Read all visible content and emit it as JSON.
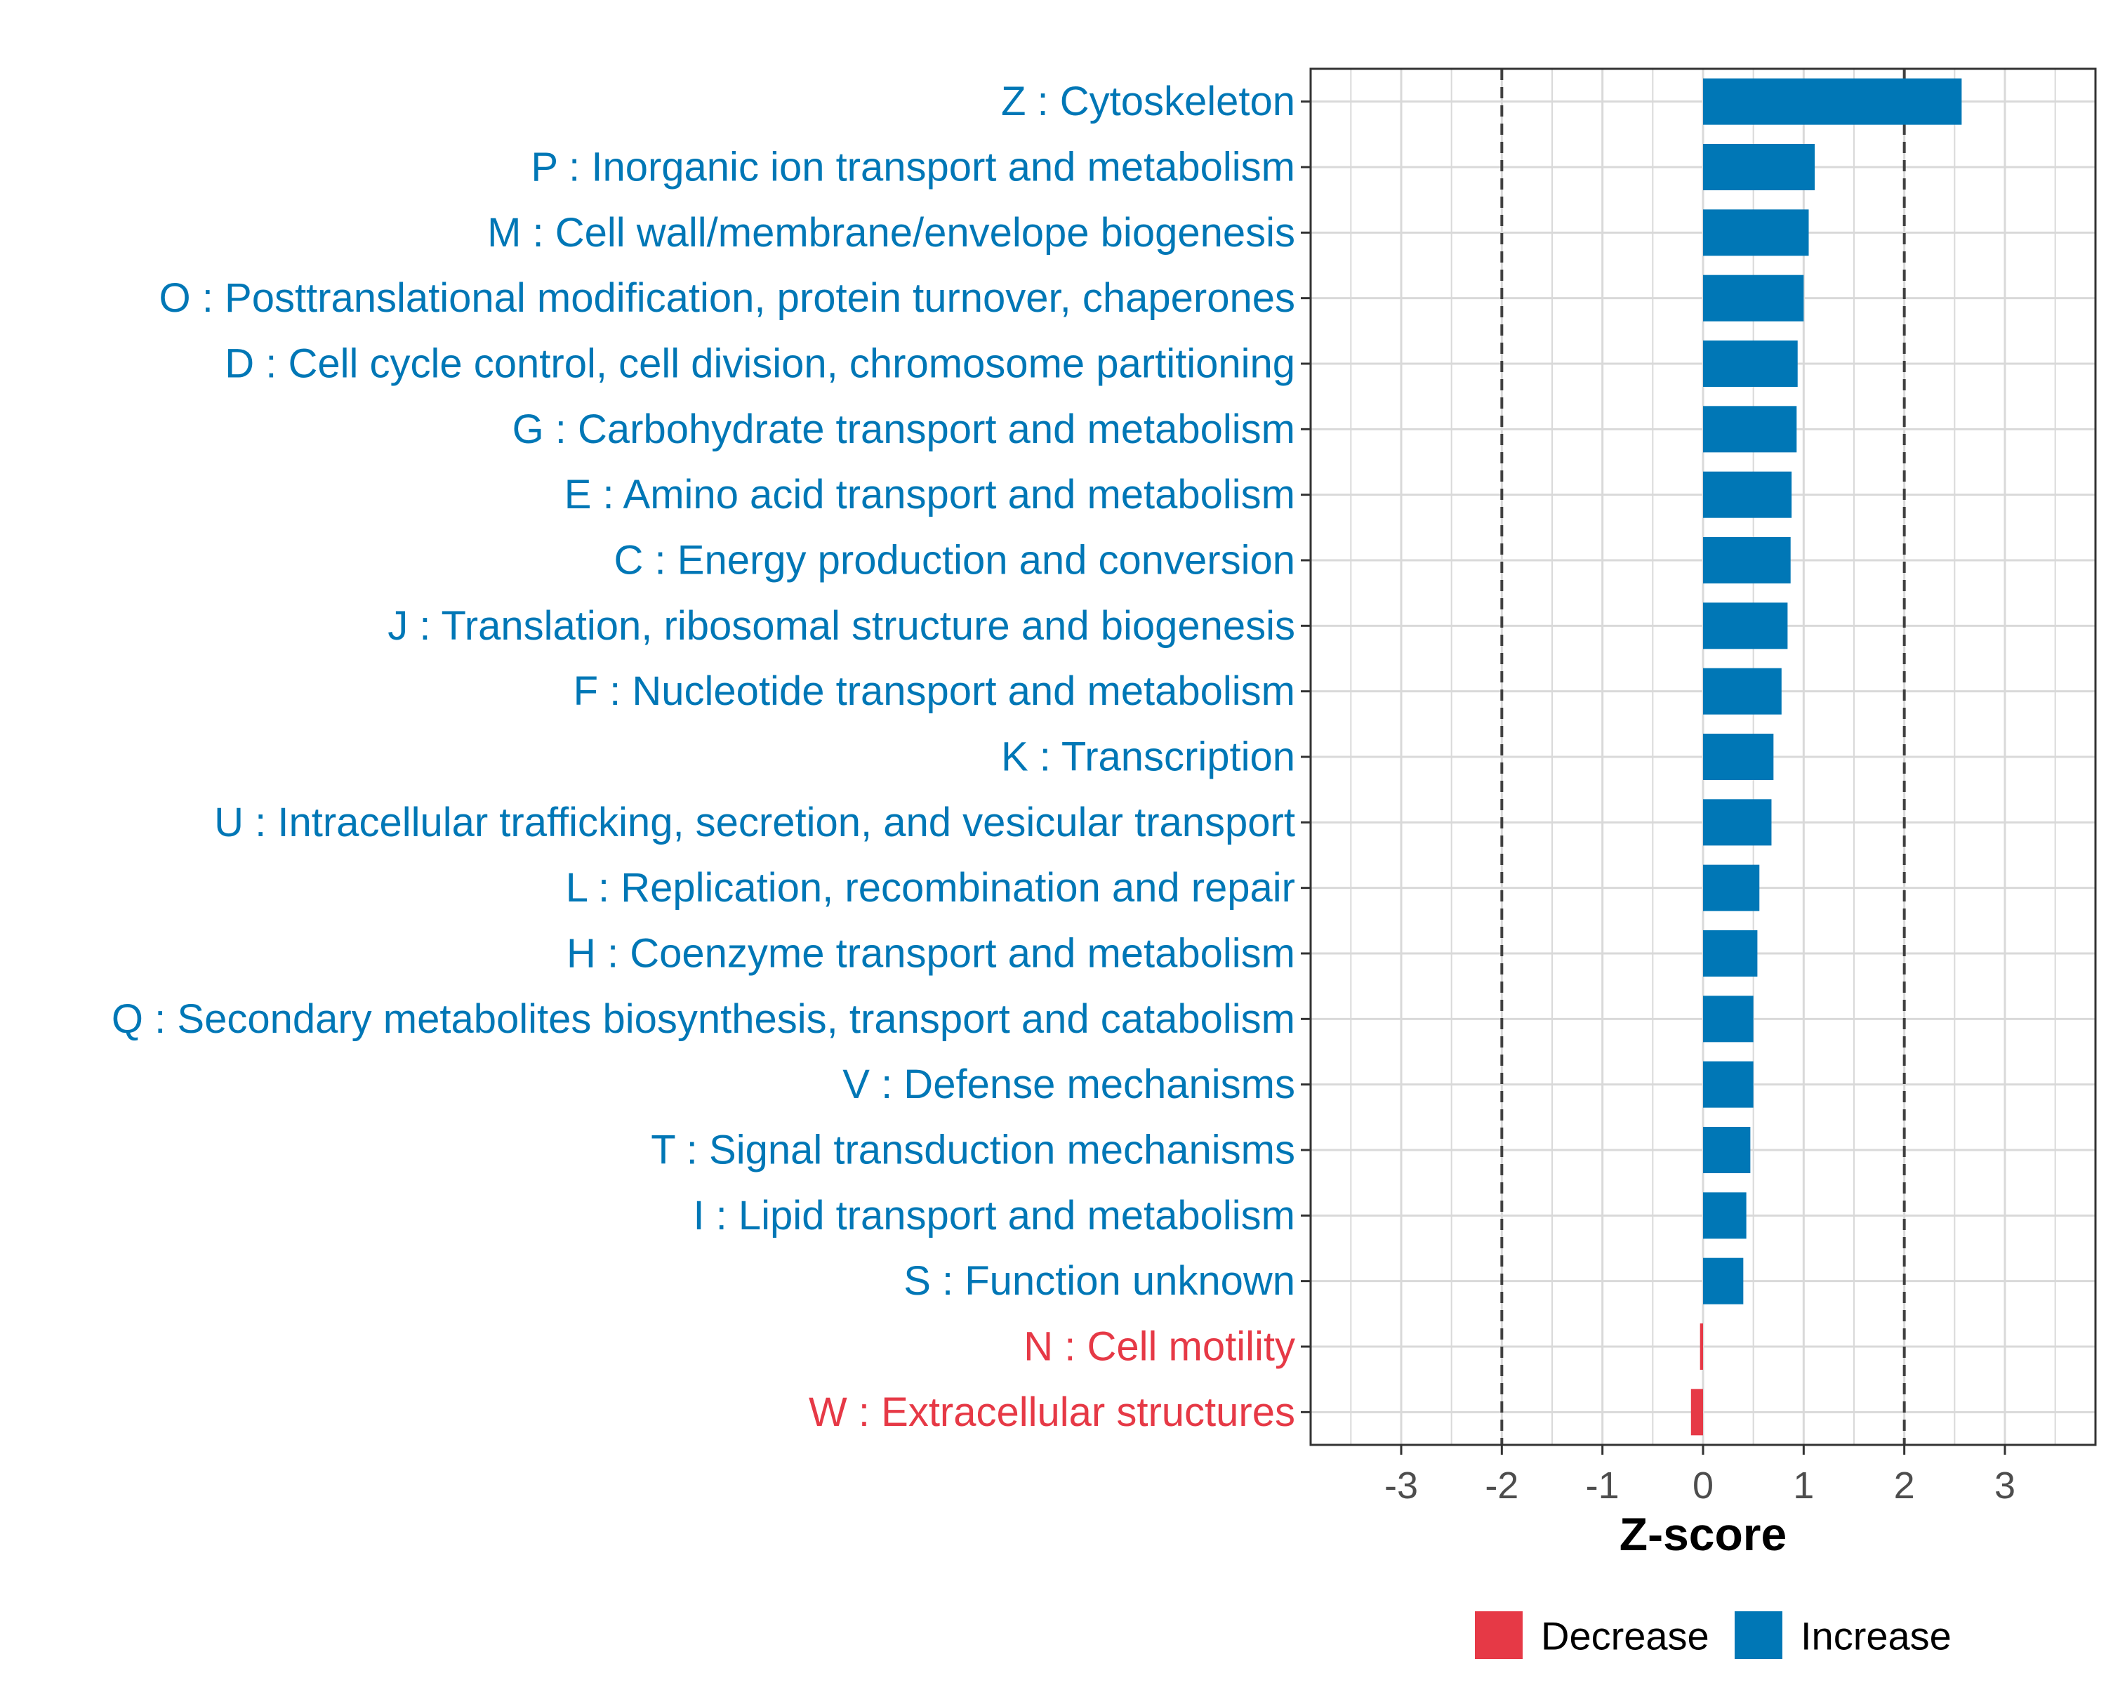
{
  "chart_data": {
    "type": "bar",
    "orientation": "horizontal",
    "title": "",
    "xlabel": "Z-score",
    "ylabel": "",
    "xlim": [
      -3.9,
      3.9
    ],
    "x_ticks": [
      -3,
      -2,
      -1,
      0,
      1,
      2,
      3
    ],
    "x_tick_labels": [
      "-3",
      "-2",
      "-1",
      "0",
      "1",
      "2",
      "3"
    ],
    "reference_lines": [
      -2,
      2
    ],
    "grid": true,
    "legend_position": "bottom",
    "categories": [
      "Z : Cytoskeleton",
      "P : Inorganic ion transport and metabolism",
      "M : Cell wall/membrane/envelope biogenesis",
      "O : Posttranslational modification, protein turnover, chaperones",
      "D : Cell cycle control, cell division, chromosome partitioning",
      "G : Carbohydrate transport and metabolism",
      "E : Amino acid transport and metabolism",
      "C : Energy production and conversion",
      "J : Translation, ribosomal structure and biogenesis",
      "F : Nucleotide transport and metabolism",
      "K : Transcription",
      "U : Intracellular trafficking, secretion, and vesicular transport",
      "L : Replication, recombination and repair",
      "H : Coenzyme transport and metabolism",
      "Q : Secondary metabolites biosynthesis, transport and catabolism",
      "V : Defense mechanisms",
      "T : Signal transduction mechanisms",
      "I : Lipid transport and metabolism",
      "S : Function unknown",
      "N : Cell motility",
      "W : Extracellular structures"
    ],
    "values": [
      2.57,
      1.11,
      1.05,
      1.0,
      0.94,
      0.93,
      0.88,
      0.87,
      0.84,
      0.78,
      0.7,
      0.68,
      0.56,
      0.54,
      0.5,
      0.5,
      0.47,
      0.43,
      0.4,
      -0.03,
      -0.12
    ],
    "groups": [
      "Increase",
      "Increase",
      "Increase",
      "Increase",
      "Increase",
      "Increase",
      "Increase",
      "Increase",
      "Increase",
      "Increase",
      "Increase",
      "Increase",
      "Increase",
      "Increase",
      "Increase",
      "Increase",
      "Increase",
      "Increase",
      "Increase",
      "Decrease",
      "Decrease"
    ],
    "legend": [
      {
        "name": "Decrease",
        "color": "#e63946"
      },
      {
        "name": "Increase",
        "color": "#0077b6"
      }
    ]
  }
}
